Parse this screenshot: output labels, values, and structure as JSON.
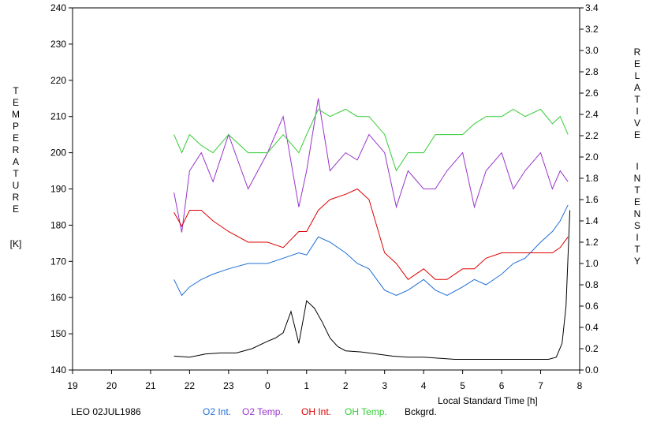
{
  "chart_data": {
    "type": "line",
    "site_date": "LEO 02JUL1986",
    "xlabel": "Local Standard Time [h]",
    "ylabel_left_letters": [
      "T",
      "E",
      "M",
      "P",
      "E",
      "R",
      "A",
      "T",
      "U",
      "R",
      "E"
    ],
    "ylabel_left_unit": "[K]",
    "ylabel_right_word1": [
      "R",
      "E",
      "L",
      "A",
      "T",
      "I",
      "V",
      "E"
    ],
    "ylabel_right_word2": [
      "I",
      "N",
      "T",
      "E",
      "N",
      "S",
      "I",
      "T",
      "Y"
    ],
    "x_ticks": [
      "19",
      "20",
      "21",
      "22",
      "23",
      "0",
      "1",
      "2",
      "3",
      "4",
      "5",
      "6",
      "7",
      "8"
    ],
    "x_range": [
      19,
      32
    ],
    "y_left_ticks": [
      "140",
      "150",
      "160",
      "170",
      "180",
      "190",
      "200",
      "210",
      "220",
      "230",
      "240"
    ],
    "y_left_range": [
      140,
      240
    ],
    "y_right_ticks": [
      "0.0",
      "0.2",
      "0.4",
      "0.6",
      "0.8",
      "1.0",
      "1.2",
      "1.4",
      "1.6",
      "1.8",
      "2.0",
      "2.2",
      "2.4",
      "2.6",
      "2.8",
      "3.0",
      "3.2",
      "3.4"
    ],
    "y_right_range": [
      0.0,
      3.4
    ],
    "grid": false,
    "legend_position": "bottom",
    "series": [
      {
        "name": "O2 Int.",
        "axis": "right",
        "color": "#1f6fd6",
        "x": [
          21.6,
          21.8,
          22.0,
          22.3,
          22.6,
          23.0,
          23.5,
          24.0,
          24.4,
          24.8,
          25.0,
          25.3,
          25.6,
          26.0,
          26.3,
          26.6,
          27.0,
          27.3,
          27.6,
          28.0,
          28.3,
          28.6,
          29.0,
          29.3,
          29.6,
          30.0,
          30.3,
          30.6,
          31.0,
          31.3,
          31.5,
          31.7
        ],
        "y": [
          0.85,
          0.7,
          0.78,
          0.85,
          0.9,
          0.95,
          1.0,
          1.0,
          1.05,
          1.1,
          1.08,
          1.25,
          1.2,
          1.1,
          1.0,
          0.95,
          0.75,
          0.7,
          0.75,
          0.85,
          0.75,
          0.7,
          0.78,
          0.85,
          0.8,
          0.9,
          1.0,
          1.05,
          1.2,
          1.3,
          1.4,
          1.55
        ]
      },
      {
        "name": "O2 Temp.",
        "axis": "left",
        "color": "#9933cc",
        "x": [
          21.6,
          21.8,
          22.0,
          22.3,
          22.6,
          23.0,
          23.5,
          24.0,
          24.4,
          24.8,
          25.0,
          25.3,
          25.6,
          26.0,
          26.3,
          26.6,
          27.0,
          27.3,
          27.6,
          28.0,
          28.3,
          28.6,
          29.0,
          29.3,
          29.6,
          30.0,
          30.3,
          30.6,
          31.0,
          31.3,
          31.5,
          31.7
        ],
        "y": [
          189,
          178,
          195,
          200,
          192,
          205,
          190,
          200,
          210,
          185,
          195,
          215,
          195,
          200,
          198,
          205,
          200,
          185,
          195,
          190,
          190,
          195,
          200,
          185,
          195,
          200,
          190,
          195,
          200,
          190,
          195,
          192
        ]
      },
      {
        "name": "OH Int.",
        "axis": "right",
        "color": "#dd0000",
        "x": [
          21.6,
          21.8,
          22.0,
          22.3,
          22.6,
          23.0,
          23.5,
          24.0,
          24.4,
          24.8,
          25.0,
          25.3,
          25.6,
          26.0,
          26.3,
          26.6,
          27.0,
          27.3,
          27.6,
          28.0,
          28.3,
          28.6,
          29.0,
          29.3,
          29.6,
          30.0,
          30.3,
          30.6,
          31.0,
          31.3,
          31.5,
          31.7
        ],
        "y": [
          1.48,
          1.35,
          1.5,
          1.5,
          1.4,
          1.3,
          1.2,
          1.2,
          1.15,
          1.3,
          1.3,
          1.5,
          1.6,
          1.65,
          1.7,
          1.6,
          1.1,
          1.0,
          0.85,
          0.95,
          0.85,
          0.85,
          0.95,
          0.95,
          1.05,
          1.1,
          1.1,
          1.1,
          1.1,
          1.1,
          1.15,
          1.25
        ]
      },
      {
        "name": "OH Temp.",
        "axis": "left",
        "color": "#33cc33",
        "x": [
          21.6,
          21.8,
          22.0,
          22.3,
          22.6,
          23.0,
          23.5,
          24.0,
          24.4,
          24.8,
          25.0,
          25.3,
          25.6,
          26.0,
          26.3,
          26.6,
          27.0,
          27.3,
          27.6,
          28.0,
          28.3,
          28.6,
          29.0,
          29.3,
          29.6,
          30.0,
          30.3,
          30.6,
          31.0,
          31.3,
          31.5,
          31.7
        ],
        "y": [
          205,
          200,
          205,
          202,
          200,
          205,
          200,
          200,
          205,
          200,
          205,
          212,
          210,
          212,
          210,
          210,
          205,
          195,
          200,
          200,
          205,
          205,
          205,
          208,
          210,
          210,
          212,
          210,
          212,
          208,
          210,
          205
        ]
      },
      {
        "name": "Bckgrd.",
        "axis": "right",
        "color": "#000000",
        "x": [
          21.6,
          22.0,
          22.4,
          22.8,
          23.2,
          23.6,
          24.0,
          24.2,
          24.4,
          24.6,
          24.8,
          25.0,
          25.2,
          25.4,
          25.6,
          25.8,
          26.0,
          26.4,
          26.8,
          27.2,
          27.6,
          28.0,
          28.4,
          28.8,
          29.2,
          29.6,
          30.0,
          30.4,
          30.8,
          31.2,
          31.4,
          31.55,
          31.65,
          31.75
        ],
        "y": [
          0.13,
          0.12,
          0.15,
          0.16,
          0.16,
          0.2,
          0.27,
          0.3,
          0.35,
          0.55,
          0.25,
          0.65,
          0.58,
          0.45,
          0.3,
          0.22,
          0.18,
          0.17,
          0.15,
          0.13,
          0.12,
          0.12,
          0.11,
          0.1,
          0.1,
          0.1,
          0.1,
          0.1,
          0.1,
          0.1,
          0.12,
          0.25,
          0.6,
          1.5
        ]
      }
    ]
  }
}
